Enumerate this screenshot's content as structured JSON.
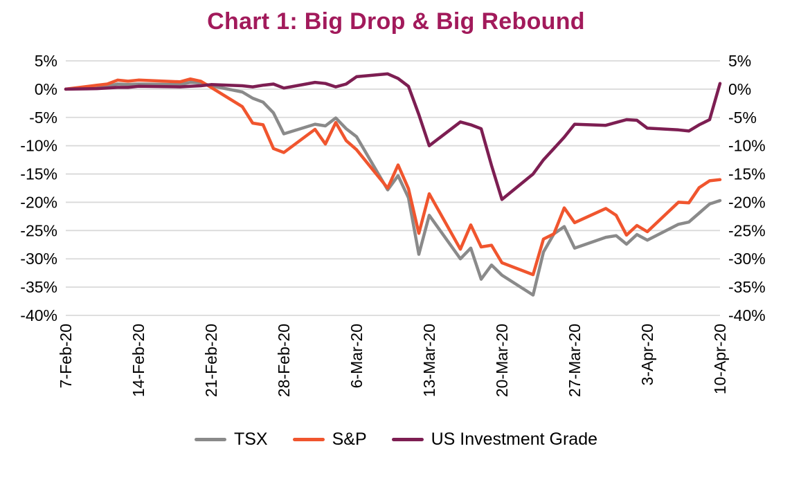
{
  "title": "Chart 1: Big Drop & Big Rebound",
  "colors": {
    "title": "#A21A5B",
    "grid": "#D9D9D9",
    "axis_text": "#000000",
    "background": "#FFFFFF"
  },
  "chart_data": {
    "type": "line",
    "title": "Chart 1: Big Drop & Big Rebound",
    "y_unit": "%",
    "ylim": [
      -40,
      5
    ],
    "grid": true,
    "legend_position": "bottom",
    "y_ticks": [
      {
        "label": "5%",
        "value": 5
      },
      {
        "label": "0%",
        "value": 0
      },
      {
        "label": "-5%",
        "value": -5
      },
      {
        "label": "-10%",
        "value": -10
      },
      {
        "label": "-15%",
        "value": -15
      },
      {
        "label": "-20%",
        "value": -20
      },
      {
        "label": "-25%",
        "value": -25
      },
      {
        "label": "-30%",
        "value": -30
      },
      {
        "label": "-35%",
        "value": -35
      },
      {
        "label": "-40%",
        "value": -40
      }
    ],
    "x_tick_labels": [
      "7-Feb-20",
      "14-Feb-20",
      "21-Feb-20",
      "28-Feb-20",
      "6-Mar-20",
      "13-Mar-20",
      "20-Mar-20",
      "27-Mar-20",
      "3-Apr-20",
      "10-Apr-20"
    ],
    "x": [
      "7-Feb-20",
      "10-Feb-20",
      "11-Feb-20",
      "12-Feb-20",
      "13-Feb-20",
      "14-Feb-20",
      "18-Feb-20",
      "19-Feb-20",
      "20-Feb-20",
      "21-Feb-20",
      "24-Feb-20",
      "25-Feb-20",
      "26-Feb-20",
      "27-Feb-20",
      "28-Feb-20",
      "2-Mar-20",
      "3-Mar-20",
      "4-Mar-20",
      "5-Mar-20",
      "6-Mar-20",
      "9-Mar-20",
      "10-Mar-20",
      "11-Mar-20",
      "12-Mar-20",
      "13-Mar-20",
      "16-Mar-20",
      "17-Mar-20",
      "18-Mar-20",
      "19-Mar-20",
      "20-Mar-20",
      "23-Mar-20",
      "24-Mar-20",
      "25-Mar-20",
      "26-Mar-20",
      "27-Mar-20",
      "30-Mar-20",
      "31-Mar-20",
      "1-Apr-20",
      "2-Apr-20",
      "3-Apr-20",
      "6-Apr-20",
      "7-Apr-20",
      "8-Apr-20",
      "9-Apr-20",
      "10-Apr-20"
    ],
    "series": [
      {
        "name": "TSX",
        "color": "#8A8A8A",
        "values": [
          0.0,
          0.3,
          0.5,
          0.9,
          0.8,
          0.9,
          0.8,
          1.2,
          1.1,
          0.6,
          -0.5,
          -1.6,
          -2.3,
          -4.2,
          -7.9,
          -6.2,
          -6.5,
          -5.1,
          -7.0,
          -8.4,
          -17.8,
          -15.3,
          -19.2,
          -29.2,
          -22.3,
          -30.0,
          -28.1,
          -33.6,
          -31.1,
          -32.9,
          -36.4,
          -28.8,
          -25.6,
          -24.3,
          -28.1,
          -26.2,
          -25.9,
          -27.4,
          -25.7,
          -26.7,
          -23.9,
          -23.5,
          -21.9,
          -20.3,
          -19.7
        ]
      },
      {
        "name": "S&P",
        "color": "#F0552E",
        "values": [
          0.0,
          0.7,
          0.9,
          1.6,
          1.4,
          1.6,
          1.3,
          1.8,
          1.4,
          0.3,
          -3.1,
          -6.0,
          -6.3,
          -10.5,
          -11.2,
          -7.1,
          -9.7,
          -5.9,
          -9.1,
          -10.7,
          -17.5,
          -13.4,
          -17.6,
          -25.5,
          -18.5,
          -28.3,
          -24.0,
          -27.9,
          -27.6,
          -30.7,
          -32.8,
          -26.5,
          -25.6,
          -21.0,
          -23.6,
          -21.1,
          -22.3,
          -25.8,
          -24.1,
          -25.2,
          -20.0,
          -20.1,
          -17.4,
          -16.2,
          -16.0
        ]
      },
      {
        "name": "US Investment Grade",
        "color": "#7D1E52",
        "values": [
          0.0,
          0.1,
          0.2,
          0.3,
          0.3,
          0.5,
          0.4,
          0.5,
          0.6,
          0.8,
          0.6,
          0.4,
          0.7,
          0.9,
          0.2,
          1.2,
          1.0,
          0.4,
          0.9,
          2.2,
          2.7,
          1.9,
          0.5,
          -4.5,
          -10.0,
          -5.8,
          -6.3,
          -7.0,
          -13.5,
          -19.5,
          -15.0,
          -12.5,
          -10.5,
          -8.5,
          -6.2,
          -6.4,
          -5.9,
          -5.4,
          -5.5,
          -6.9,
          -7.2,
          -7.4,
          -6.3,
          -5.4,
          1.0
        ]
      }
    ]
  }
}
